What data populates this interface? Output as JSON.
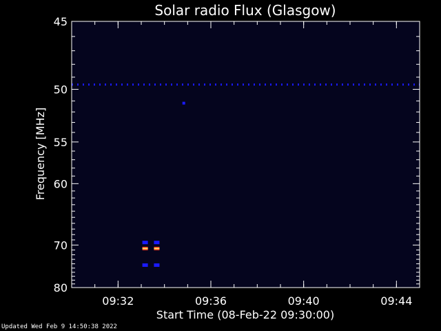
{
  "chart_data": {
    "type": "heatmap",
    "title": "Solar radio Flux (Glasgow)",
    "xlabel": "Start Time (08-Feb-22 09:30:00)",
    "ylabel": "Frequency [MHz]",
    "xlim": [
      "09:30:00",
      "09:45:00"
    ],
    "ylim": [
      45,
      80
    ],
    "y_inverted": true,
    "x_ticks": [
      "09:32",
      "09:36",
      "09:40",
      "09:44"
    ],
    "y_ticks": [
      45,
      50,
      55,
      60,
      70,
      80
    ],
    "colors": {
      "background": "#000000",
      "plot_background": "#05051e",
      "axis": "#ffffff",
      "weak_emission": "#1a1aff",
      "strong_emission": "#ff3b1a"
    },
    "features": [
      {
        "kind": "band",
        "freq_mhz": 49.6,
        "time_start": "09:30:00",
        "time_end": "09:45:00",
        "intensity": "weak"
      },
      {
        "kind": "burst",
        "freq_mhz": 69.5,
        "times": [
          "09:33:10",
          "09:33:40"
        ],
        "intensity": "weak"
      },
      {
        "kind": "burst",
        "freq_mhz": 70.7,
        "times": [
          "09:33:10",
          "09:33:40"
        ],
        "intensity": "strong"
      },
      {
        "kind": "burst",
        "freq_mhz": 74.3,
        "times": [
          "09:33:10",
          "09:33:40"
        ],
        "intensity": "weak"
      },
      {
        "kind": "spot",
        "freq_mhz": 51.2,
        "time": "09:34:50",
        "intensity": "weak"
      }
    ]
  },
  "footer": {
    "updated": "Updated Wed Feb  9 14:50:38 2022"
  }
}
